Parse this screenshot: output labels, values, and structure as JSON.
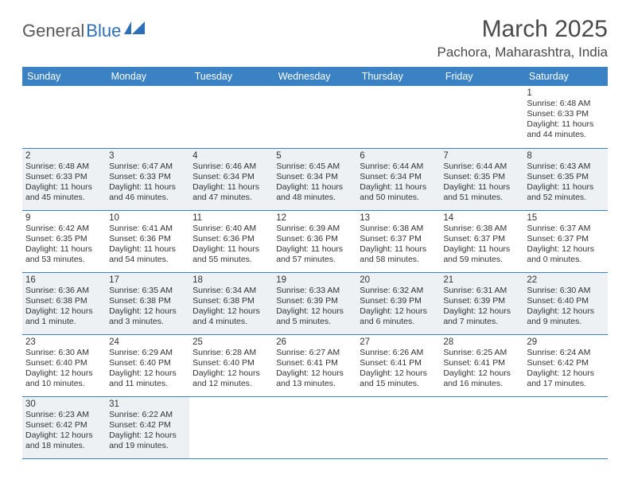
{
  "logo": {
    "part1": "General",
    "part2": "Blue"
  },
  "title": "March 2025",
  "location": "Pachora, Maharashtra, India",
  "colors": {
    "headerBg": "#3b82c4",
    "headerText": "#ffffff",
    "shadedCell": "#eef1f4",
    "bodyText": "#333333",
    "titleText": "#4a4a4a",
    "logoDark": "#58595b",
    "logoBlue": "#2d6fb5"
  },
  "weekdays": [
    "Sunday",
    "Monday",
    "Tuesday",
    "Wednesday",
    "Thursday",
    "Friday",
    "Saturday"
  ],
  "weeks": [
    [
      null,
      null,
      null,
      null,
      null,
      null,
      {
        "d": "1",
        "sr": "6:48 AM",
        "ss": "6:33 PM",
        "dl": "11 hours and 44 minutes."
      }
    ],
    [
      {
        "d": "2",
        "sr": "6:48 AM",
        "ss": "6:33 PM",
        "dl": "11 hours and 45 minutes.",
        "sh": true
      },
      {
        "d": "3",
        "sr": "6:47 AM",
        "ss": "6:33 PM",
        "dl": "11 hours and 46 minutes.",
        "sh": true
      },
      {
        "d": "4",
        "sr": "6:46 AM",
        "ss": "6:34 PM",
        "dl": "11 hours and 47 minutes.",
        "sh": true
      },
      {
        "d": "5",
        "sr": "6:45 AM",
        "ss": "6:34 PM",
        "dl": "11 hours and 48 minutes.",
        "sh": true
      },
      {
        "d": "6",
        "sr": "6:44 AM",
        "ss": "6:34 PM",
        "dl": "11 hours and 50 minutes.",
        "sh": true
      },
      {
        "d": "7",
        "sr": "6:44 AM",
        "ss": "6:35 PM",
        "dl": "11 hours and 51 minutes.",
        "sh": true
      },
      {
        "d": "8",
        "sr": "6:43 AM",
        "ss": "6:35 PM",
        "dl": "11 hours and 52 minutes.",
        "sh": true
      }
    ],
    [
      {
        "d": "9",
        "sr": "6:42 AM",
        "ss": "6:35 PM",
        "dl": "11 hours and 53 minutes."
      },
      {
        "d": "10",
        "sr": "6:41 AM",
        "ss": "6:36 PM",
        "dl": "11 hours and 54 minutes."
      },
      {
        "d": "11",
        "sr": "6:40 AM",
        "ss": "6:36 PM",
        "dl": "11 hours and 55 minutes."
      },
      {
        "d": "12",
        "sr": "6:39 AM",
        "ss": "6:36 PM",
        "dl": "11 hours and 57 minutes."
      },
      {
        "d": "13",
        "sr": "6:38 AM",
        "ss": "6:37 PM",
        "dl": "11 hours and 58 minutes."
      },
      {
        "d": "14",
        "sr": "6:38 AM",
        "ss": "6:37 PM",
        "dl": "11 hours and 59 minutes."
      },
      {
        "d": "15",
        "sr": "6:37 AM",
        "ss": "6:37 PM",
        "dl": "12 hours and 0 minutes."
      }
    ],
    [
      {
        "d": "16",
        "sr": "6:36 AM",
        "ss": "6:38 PM",
        "dl": "12 hours and 1 minute.",
        "sh": true
      },
      {
        "d": "17",
        "sr": "6:35 AM",
        "ss": "6:38 PM",
        "dl": "12 hours and 3 minutes.",
        "sh": true
      },
      {
        "d": "18",
        "sr": "6:34 AM",
        "ss": "6:38 PM",
        "dl": "12 hours and 4 minutes.",
        "sh": true
      },
      {
        "d": "19",
        "sr": "6:33 AM",
        "ss": "6:39 PM",
        "dl": "12 hours and 5 minutes.",
        "sh": true
      },
      {
        "d": "20",
        "sr": "6:32 AM",
        "ss": "6:39 PM",
        "dl": "12 hours and 6 minutes.",
        "sh": true
      },
      {
        "d": "21",
        "sr": "6:31 AM",
        "ss": "6:39 PM",
        "dl": "12 hours and 7 minutes.",
        "sh": true
      },
      {
        "d": "22",
        "sr": "6:30 AM",
        "ss": "6:40 PM",
        "dl": "12 hours and 9 minutes.",
        "sh": true
      }
    ],
    [
      {
        "d": "23",
        "sr": "6:30 AM",
        "ss": "6:40 PM",
        "dl": "12 hours and 10 minutes."
      },
      {
        "d": "24",
        "sr": "6:29 AM",
        "ss": "6:40 PM",
        "dl": "12 hours and 11 minutes."
      },
      {
        "d": "25",
        "sr": "6:28 AM",
        "ss": "6:40 PM",
        "dl": "12 hours and 12 minutes."
      },
      {
        "d": "26",
        "sr": "6:27 AM",
        "ss": "6:41 PM",
        "dl": "12 hours and 13 minutes."
      },
      {
        "d": "27",
        "sr": "6:26 AM",
        "ss": "6:41 PM",
        "dl": "12 hours and 15 minutes."
      },
      {
        "d": "28",
        "sr": "6:25 AM",
        "ss": "6:41 PM",
        "dl": "12 hours and 16 minutes."
      },
      {
        "d": "29",
        "sr": "6:24 AM",
        "ss": "6:42 PM",
        "dl": "12 hours and 17 minutes."
      }
    ],
    [
      {
        "d": "30",
        "sr": "6:23 AM",
        "ss": "6:42 PM",
        "dl": "12 hours and 18 minutes.",
        "sh": true
      },
      {
        "d": "31",
        "sr": "6:22 AM",
        "ss": "6:42 PM",
        "dl": "12 hours and 19 minutes.",
        "sh": true
      },
      null,
      null,
      null,
      null,
      null
    ]
  ],
  "labels": {
    "sunrise": "Sunrise:",
    "sunset": "Sunset:",
    "daylight": "Daylight:"
  }
}
